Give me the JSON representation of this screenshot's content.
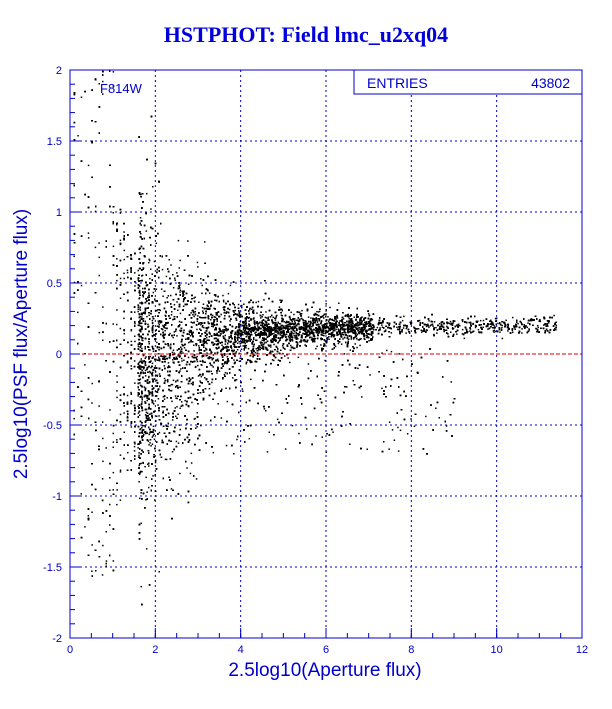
{
  "title": "HSTPHOT: Field lmc_u2xq04",
  "chart_data": {
    "type": "scatter",
    "title": "HSTPHOT: Field lmc_u2xq04",
    "xlabel": "2.5log10(Aperture flux)",
    "ylabel": "2.5log10(PSF flux/Aperture flux)",
    "xlim": [
      0,
      12
    ],
    "ylim": [
      -2,
      2
    ],
    "x_ticks": [
      "0",
      "2",
      "4",
      "6",
      "8",
      "10",
      "12"
    ],
    "y_ticks": [
      "-2",
      "-1.5",
      "-1",
      "-0.5",
      "0",
      "0.5",
      "1",
      "1.5",
      "2"
    ],
    "grid": true,
    "grid_style": "dashed",
    "filter_label": "F814W",
    "stats_box": {
      "label": "ENTRIES",
      "value": "43802"
    },
    "reference_line": {
      "y": 0,
      "color": "#dd0000",
      "style": "dashed"
    },
    "n_entries": 43802,
    "point_color": "#000000",
    "distribution": "funnel: large scatter (about -2 to +2) at faint flux x<2, narrowing with flux; a tight ridge near y=0.1-0.25 extends to x=11.4; scattered points below ridge down to about y=-0.7 for x=5-9"
  },
  "colors": {
    "axis": "#0000cc",
    "title": "#0000dd",
    "zero_line": "#dd0000",
    "points": "#000000"
  }
}
